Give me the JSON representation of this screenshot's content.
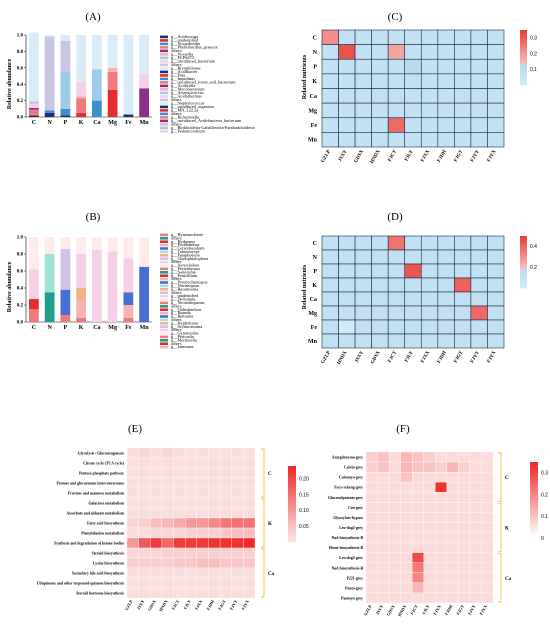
{
  "colors": {
    "heat_low": "#b8dbef",
    "heat_high": "#e8413a",
    "gold": "#f0c040",
    "cb_low": "#fcd6d6",
    "cb_high": "#ee2b2b"
  },
  "chart_data": [
    {
      "panel": "(A)",
      "type": "bar",
      "stacked": true,
      "ylabel": "Relative abundance",
      "ylim": [
        0,
        1.0
      ],
      "yticks": [
        "0.0",
        "0.2",
        "0.4",
        "0.6",
        "0.8",
        "1.0"
      ],
      "categories": [
        "C",
        "N",
        "P",
        "K",
        "Ca",
        "Mg",
        "Fe",
        "Mn"
      ],
      "legend": [
        "g__Acidiosciga",
        "g__unidentified",
        "g__Nocardioides",
        "g__Phyllobacillus_praecox",
        "others",
        "g__Nocardia",
        "g__FCPS473",
        "g__uncultured_bacterium",
        "others",
        "g__Bryophilonas",
        "g__Acidibacter",
        "g__Puia",
        "g__Inquilinus",
        "g__uncultured_forest_soil_bacterium",
        "g__Acidicella",
        "g__Mycobacterium",
        "g__Arsenicicoccus",
        "g__Acidothermus",
        "others",
        "g__Staphylococcus",
        "g__uncultured_organism",
        "g__MN_122.2a",
        "others",
        "g__Rickettsiella",
        "g__uncultured_Acidobacteria_bacterium",
        "others",
        "g__Burkholderia-Caballeronia-Paraburkholderia",
        "g__Pedomicrobium"
      ],
      "stack_colors": [
        "#1a2f7a",
        "#e32e2e",
        "#3d8fd1",
        "#f07a7a",
        "#8a2f8a",
        "#f5b3b3",
        "#9ecbe8",
        "#f5d0e6",
        "#c9c6e5",
        "#d9ecf7"
      ],
      "stacks": [
        [
          0.02,
          0.0,
          0.0,
          0.07,
          0.02,
          0.0,
          0.0,
          0.05,
          0.03,
          0.84
        ],
        [
          0.05,
          0.0,
          0.03,
          0.0,
          0.0,
          0.0,
          0.0,
          0.0,
          0.9,
          0.02
        ],
        [
          0.02,
          0.0,
          0.08,
          0.0,
          0.0,
          0.0,
          0.45,
          0.0,
          0.38,
          0.07
        ],
        [
          0.0,
          0.05,
          0.0,
          0.18,
          0.0,
          0.02,
          0.0,
          0.18,
          0.0,
          0.57
        ],
        [
          0.0,
          0.0,
          0.2,
          0.0,
          0.0,
          0.0,
          0.38,
          0.0,
          0.0,
          0.42
        ],
        [
          0.0,
          0.33,
          0.0,
          0.22,
          0.0,
          0.05,
          0.0,
          0.0,
          0.0,
          0.4
        ],
        [
          0.03,
          0.0,
          0.0,
          0.0,
          0.0,
          0.0,
          0.0,
          0.0,
          0.0,
          0.97
        ],
        [
          0.0,
          0.0,
          0.0,
          0.0,
          0.35,
          0.0,
          0.0,
          0.17,
          0.0,
          0.48
        ]
      ]
    },
    {
      "panel": "(B)",
      "type": "bar",
      "stacked": true,
      "ylabel": "Relative abundance",
      "ylim": [
        0,
        1.0
      ],
      "yticks": [
        "0.0",
        "0.2",
        "0.4",
        "0.6",
        "0.8",
        "1.0"
      ],
      "categories": [
        "C",
        "N",
        "P",
        "K",
        "Ca",
        "Mg",
        "Fe",
        "Mn"
      ],
      "legend": [
        "g__Hymenochaete",
        "others",
        "g__Hydnopus",
        "g__Pochhambea",
        "g__Ceratobasidium",
        "g__Talaromyces",
        "g__Paraphoeella",
        "g__Cladophialophora",
        "others",
        "g__Xenochalara",
        "g__Pezizabyssus",
        "g__Saitozyma",
        "g__Penicillium",
        "others",
        "g__Pyrenochaetopsis",
        "g__Verrimopora",
        "g__Rasamsonia",
        "others",
        "g__unidentified",
        "g__Delicatula",
        "g__Neonothopanus",
        "others",
        "g__Oidiodendron",
        "g__Ruanda",
        "g__Beltrania",
        "others",
        "g__Hypholoma",
        "g__Scytinostroma",
        "others",
        "g__Gymnopilus",
        "g__Periconia",
        "g__Mortierella",
        "others",
        "g__Jaminaea"
      ],
      "stack_colors": [
        "#f07a7a",
        "#1f9e8a",
        "#e32e2e",
        "#f5b3b3",
        "#4a6fd4",
        "#9fe3d6",
        "#f0b48a",
        "#cfc2ea",
        "#f5d0e6",
        "#fdecea"
      ],
      "stacks": [
        [
          0.15,
          0.0,
          0.12,
          0.0,
          0.0,
          0.0,
          0.0,
          0.0,
          0.35,
          0.38
        ],
        [
          0.0,
          0.35,
          0.0,
          0.0,
          0.0,
          0.45,
          0.0,
          0.0,
          0.0,
          0.2
        ],
        [
          0.08,
          0.0,
          0.0,
          0.0,
          0.3,
          0.0,
          0.0,
          0.48,
          0.0,
          0.14
        ],
        [
          0.05,
          0.0,
          0.0,
          0.2,
          0.0,
          0.0,
          0.15,
          0.0,
          0.4,
          0.2
        ],
        [
          0.0,
          0.0,
          0.0,
          0.0,
          0.0,
          0.0,
          0.0,
          0.0,
          0.85,
          0.15
        ],
        [
          0.0,
          0.0,
          0.0,
          0.0,
          0.0,
          0.0,
          0.0,
          0.0,
          0.83,
          0.17
        ],
        [
          0.05,
          0.0,
          0.0,
          0.15,
          0.15,
          0.0,
          0.0,
          0.0,
          0.4,
          0.25
        ],
        [
          0.0,
          0.0,
          0.0,
          0.0,
          0.65,
          0.0,
          0.0,
          0.0,
          0.0,
          0.35
        ]
      ]
    },
    {
      "panel": "(C)",
      "type": "heatmap",
      "ylabel": "Related nutrients",
      "rows": [
        "C",
        "N",
        "P",
        "K",
        "Ca",
        "Mg",
        "Fe",
        "Mn"
      ],
      "cols": [
        "GZLP",
        "JSXY",
        "GDSX",
        "HNDX",
        "FJCT",
        "FJLY",
        "FJXX",
        "FJDH",
        "FJGT",
        "FJYY",
        "FJYX"
      ],
      "colorbar": {
        "ticks": [
          "0.1",
          "0.2",
          "0.3"
        ],
        "range": [
          0,
          0.35
        ]
      },
      "values": [
        [
          0.22,
          0.08,
          0.08,
          0.08,
          0.08,
          0.08,
          0.08,
          0.08,
          0.08,
          0.08,
          0.08
        ],
        [
          0.08,
          0.32,
          0.08,
          0.08,
          0.18,
          0.08,
          0.08,
          0.08,
          0.08,
          0.08,
          0.08
        ],
        [
          0.08,
          0.08,
          0.08,
          0.08,
          0.08,
          0.12,
          0.08,
          0.08,
          0.08,
          0.08,
          0.08
        ],
        [
          0.08,
          0.08,
          0.08,
          0.08,
          0.08,
          0.08,
          0.08,
          0.08,
          0.08,
          0.08,
          0.08
        ],
        [
          0.08,
          0.08,
          0.08,
          0.08,
          0.08,
          0.08,
          0.08,
          0.08,
          0.08,
          0.08,
          0.08
        ],
        [
          0.08,
          0.08,
          0.08,
          0.08,
          0.08,
          0.08,
          0.08,
          0.08,
          0.08,
          0.08,
          0.08
        ],
        [
          0.08,
          0.08,
          0.08,
          0.08,
          0.28,
          0.08,
          0.08,
          0.08,
          0.08,
          0.08,
          0.08
        ],
        [
          0.08,
          0.08,
          0.08,
          0.08,
          0.08,
          0.08,
          0.08,
          0.08,
          0.08,
          0.08,
          0.08
        ]
      ]
    },
    {
      "panel": "(D)",
      "type": "heatmap",
      "ylabel": "Related nutrients",
      "rows": [
        "C",
        "N",
        "P",
        "K",
        "Ca",
        "Mg",
        "Fe",
        "Mn"
      ],
      "cols": [
        "GZLP",
        "HNDX",
        "JSXY",
        "GDSX",
        "FJCT",
        "FJLY",
        "FJXX",
        "FJDH",
        "FJGT",
        "FJYY",
        "FJYX"
      ],
      "colorbar": {
        "ticks": [
          "0.2",
          "0.4"
        ],
        "range": [
          0,
          0.5
        ]
      },
      "values": [
        [
          0.12,
          0.12,
          0.12,
          0.12,
          0.38,
          0.12,
          0.12,
          0.12,
          0.12,
          0.12,
          0.12
        ],
        [
          0.12,
          0.12,
          0.12,
          0.12,
          0.12,
          0.12,
          0.12,
          0.12,
          0.12,
          0.12,
          0.12
        ],
        [
          0.12,
          0.12,
          0.12,
          0.12,
          0.12,
          0.45,
          0.12,
          0.12,
          0.12,
          0.12,
          0.12
        ],
        [
          0.12,
          0.12,
          0.12,
          0.12,
          0.12,
          0.12,
          0.12,
          0.12,
          0.42,
          0.12,
          0.12
        ],
        [
          0.12,
          0.12,
          0.12,
          0.12,
          0.12,
          0.12,
          0.12,
          0.12,
          0.12,
          0.12,
          0.12
        ],
        [
          0.12,
          0.12,
          0.12,
          0.12,
          0.12,
          0.12,
          0.12,
          0.12,
          0.12,
          0.4,
          0.12
        ],
        [
          0.12,
          0.02,
          0.12,
          0.12,
          0.12,
          0.12,
          0.12,
          0.12,
          0.12,
          0.12,
          0.12
        ],
        [
          0.12,
          0.12,
          0.12,
          0.12,
          0.12,
          0.12,
          0.12,
          0.12,
          0.12,
          0.12,
          0.12
        ]
      ]
    },
    {
      "panel": "(E)",
      "type": "heatmap",
      "rows": [
        "Glycolysis / Gluconeogenesis",
        "Citrate cycle (TCA cycle)",
        "Pentose phosphate pathway",
        "Pentose and glucuronate interconversions",
        "Fructose and mannose metabolism",
        "Galactose metabolism",
        "Ascorbate and aldarate metabolism",
        "Fatty acid biosynthesis",
        "Phenylalanine metabolism",
        "Synthesis and degradation of ketone bodies",
        "Steroid biosynthesis",
        "Lysine biosynthesis",
        "Secondary bile acid biosynthesis",
        "Ubiquinone and other terpenoid-quinone biosynthesis",
        "Steroid hormone biosynthesis"
      ],
      "cols": [
        "GZLP",
        "JSXY",
        "GDSX",
        "HNDX",
        "FJCT",
        "FJLY",
        "FJXX",
        "FJDH",
        "FJGT",
        "FJYY",
        "FJYX"
      ],
      "groups": [
        {
          "label": "C",
          "rows": [
            0,
            4
          ]
        },
        {
          "label": "K",
          "rows": [
            5,
            9
          ]
        },
        {
          "label": "Ca",
          "rows": [
            10,
            14
          ]
        }
      ],
      "colorbar": {
        "ticks": [
          "0.05",
          "0.10",
          "0.15",
          "0.20"
        ],
        "range": [
          0,
          0.24
        ]
      },
      "values": [
        [
          0.01,
          0.02,
          0.01,
          0.02,
          0.01,
          0.01,
          0.01,
          0.01,
          0.01,
          0.01,
          0.01
        ],
        [
          0.01,
          0.01,
          0.01,
          0.01,
          0.01,
          0.01,
          0.01,
          0.01,
          0.01,
          0.01,
          0.01
        ],
        [
          0.01,
          0.01,
          0.01,
          0.01,
          0.01,
          0.01,
          0.01,
          0.01,
          0.01,
          0.01,
          0.01
        ],
        [
          0.01,
          0.01,
          0.01,
          0.01,
          0.01,
          0.01,
          0.01,
          0.01,
          0.01,
          0.01,
          0.01
        ],
        [
          0.01,
          0.01,
          0.01,
          0.01,
          0.01,
          0.01,
          0.01,
          0.01,
          0.01,
          0.01,
          0.01
        ],
        [
          0.01,
          0.01,
          0.01,
          0.01,
          0.01,
          0.01,
          0.01,
          0.01,
          0.01,
          0.01,
          0.01
        ],
        [
          0.01,
          0.01,
          0.01,
          0.01,
          0.01,
          0.01,
          0.01,
          0.01,
          0.01,
          0.01,
          0.01
        ],
        [
          0.02,
          0.03,
          0.05,
          0.06,
          0.08,
          0.1,
          0.1,
          0.12,
          0.14,
          0.15,
          0.15
        ],
        [
          0.01,
          0.01,
          0.02,
          0.02,
          0.02,
          0.03,
          0.03,
          0.03,
          0.04,
          0.05,
          0.05
        ],
        [
          0.1,
          0.18,
          0.22,
          0.16,
          0.22,
          0.22,
          0.22,
          0.23,
          0.23,
          0.23,
          0.24
        ],
        [
          0.02,
          0.02,
          0.02,
          0.03,
          0.03,
          0.03,
          0.03,
          0.03,
          0.03,
          0.03,
          0.03
        ],
        [
          0.03,
          0.03,
          0.03,
          0.03,
          0.04,
          0.04,
          0.05,
          0.05,
          0.04,
          0.04,
          0.04
        ],
        [
          0.01,
          0.01,
          0.01,
          0.01,
          0.01,
          0.01,
          0.01,
          0.01,
          0.01,
          0.01,
          0.01
        ],
        [
          0.01,
          0.01,
          0.01,
          0.01,
          0.01,
          0.01,
          0.01,
          0.01,
          0.01,
          0.01,
          0.01
        ],
        [
          0.01,
          0.01,
          0.01,
          0.01,
          0.01,
          0.01,
          0.01,
          0.01,
          0.01,
          0.01,
          0.01
        ]
      ]
    },
    {
      "panel": "(F)",
      "type": "heatmap",
      "rows": [
        "Amygdonymo-grey",
        "Calvin-grey",
        "Colonnyo-grey",
        "Fucy-rekeng-grey",
        "Gluconolpotrain-grey",
        "Cou-grey",
        "Glyoxylate-bypass",
        "Leu-dog2-grey",
        "Nad-biosynthesis-B",
        "Heme-biosynthesis-B",
        "Leu-dog2-grey",
        "Nad-biosynthesis-B",
        "P221-grey",
        "Panto-grey",
        "Pantoyn-grey"
      ],
      "cols": [
        "GZLP",
        "JSXY",
        "GDSX",
        "HNDX",
        "FJCT",
        "FJLY",
        "FJXX",
        "FJDH",
        "FJGT",
        "FJYY",
        "FJYX"
      ],
      "groups": [
        {
          "label": "C",
          "rows": [
            0,
            4
          ]
        },
        {
          "label": "K",
          "rows": [
            5,
            9
          ]
        },
        {
          "label": "Ca",
          "rows": [
            10,
            14
          ]
        }
      ],
      "colorbar": {
        "ticks": [
          "0",
          "0.1",
          "0.2",
          "0.3"
        ],
        "range": [
          0,
          0.35
        ]
      },
      "values": [
        [
          0.08,
          0.1,
          0.06,
          0.12,
          0.1,
          0.08,
          0.06,
          0.06,
          0.06,
          0.06,
          0.06
        ],
        [
          0.08,
          0.1,
          0.06,
          0.12,
          0.1,
          0.1,
          0.08,
          0.12,
          0.08,
          0.06,
          0.06
        ],
        [
          0.06,
          0.06,
          0.06,
          0.1,
          0.06,
          0.06,
          0.06,
          0.06,
          0.06,
          0.06,
          0.06
        ],
        [
          0.06,
          0.06,
          0.06,
          0.06,
          0.06,
          0.06,
          0.34,
          0.06,
          0.06,
          0.06,
          0.06
        ],
        [
          0.06,
          0.06,
          0.06,
          0.06,
          0.06,
          0.06,
          0.06,
          0.06,
          0.06,
          0.06,
          0.06
        ],
        [
          0.06,
          0.06,
          0.06,
          0.06,
          0.06,
          0.06,
          0.06,
          0.06,
          0.06,
          0.06,
          0.06
        ],
        [
          0.06,
          0.06,
          0.06,
          0.06,
          0.06,
          0.06,
          0.06,
          0.06,
          0.06,
          0.06,
          0.06
        ],
        [
          0.06,
          0.06,
          0.06,
          0.06,
          0.06,
          0.06,
          0.06,
          0.06,
          0.06,
          0.06,
          0.06
        ],
        [
          0.06,
          0.06,
          0.06,
          0.06,
          0.06,
          0.06,
          0.06,
          0.06,
          0.06,
          0.06,
          0.06
        ],
        [
          0.06,
          0.06,
          0.06,
          0.06,
          0.06,
          0.06,
          0.06,
          0.06,
          0.06,
          0.06,
          0.06
        ],
        [
          0.06,
          0.06,
          0.06,
          0.06,
          0.3,
          0.06,
          0.06,
          0.06,
          0.06,
          0.06,
          0.06
        ],
        [
          0.06,
          0.06,
          0.06,
          0.06,
          0.22,
          0.06,
          0.06,
          0.06,
          0.06,
          0.06,
          0.06
        ],
        [
          0.06,
          0.06,
          0.06,
          0.06,
          0.2,
          0.06,
          0.06,
          0.06,
          0.06,
          0.06,
          0.06
        ],
        [
          0.06,
          0.06,
          0.06,
          0.06,
          0.12,
          0.06,
          0.06,
          0.06,
          0.06,
          0.06,
          0.06
        ],
        [
          0.06,
          0.06,
          0.06,
          0.06,
          0.06,
          0.06,
          0.06,
          0.06,
          0.06,
          0.06,
          0.06
        ]
      ]
    }
  ]
}
